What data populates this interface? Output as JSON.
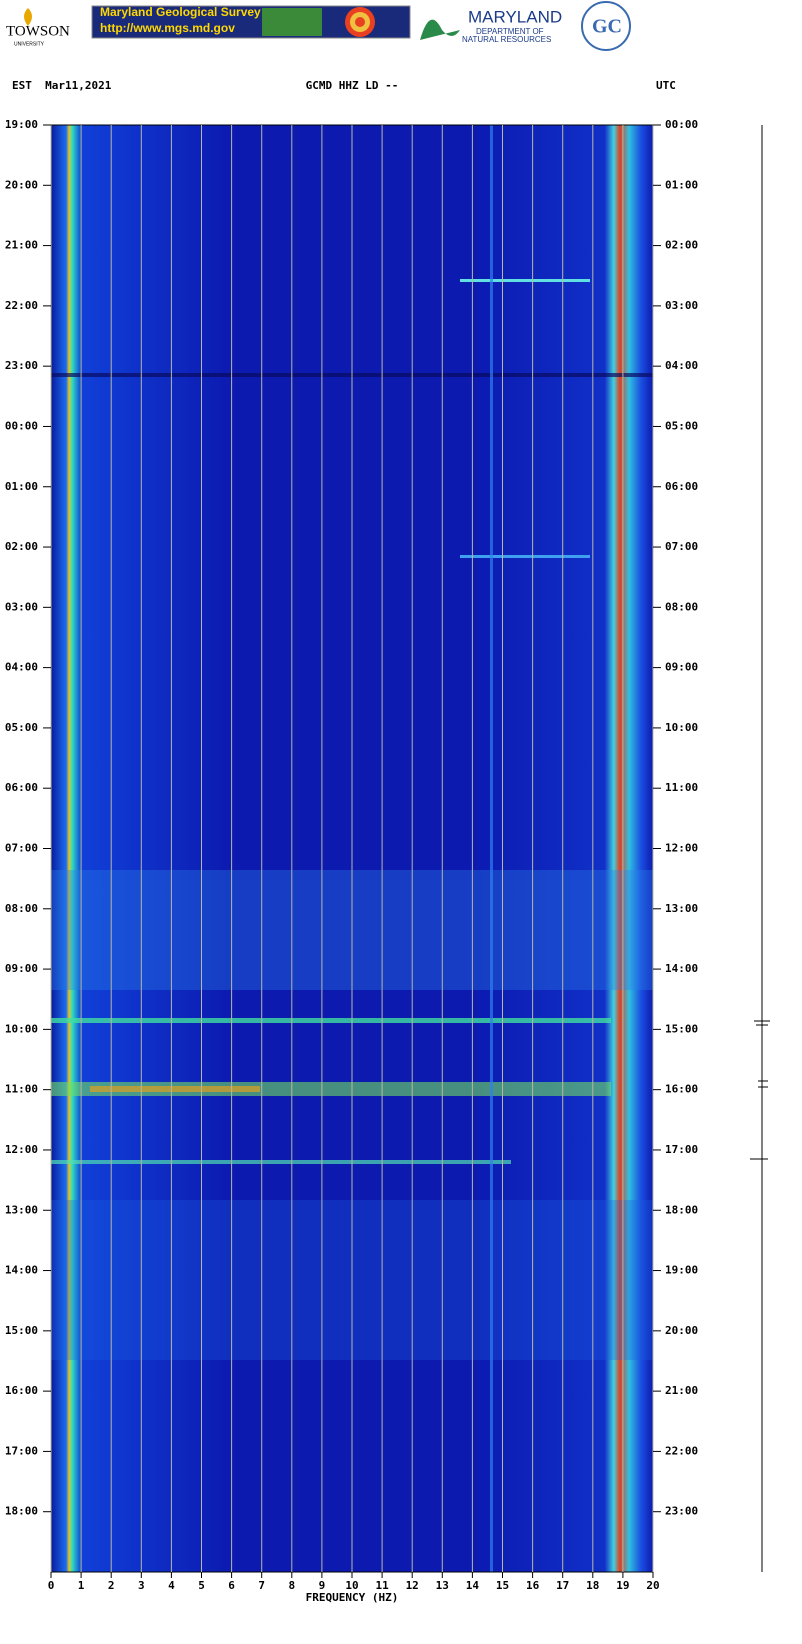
{
  "header": {
    "towson": "TOWSON",
    "towson_sub": "UNIVERSITY",
    "mgs_title": "Maryland Geological Survey",
    "mgs_url": "http://www.mgs.md.gov",
    "dnr_title": "MARYLAND",
    "dnr_sub1": "DEPARTMENT OF",
    "dnr_sub2": "NATURAL RESOURCES"
  },
  "chart_data": {
    "type": "spectrogram",
    "title": "GCMD HHZ LD --",
    "left_label": "EST  Mar11,2021",
    "right_label": "UTC",
    "x_label": "FREQUENCY (HZ)",
    "xlim": [
      0,
      20
    ],
    "xticks": [
      0,
      1,
      2,
      3,
      4,
      5,
      6,
      7,
      8,
      9,
      10,
      11,
      12,
      13,
      14,
      15,
      16,
      17,
      18,
      19,
      20
    ],
    "grid": true,
    "y_labels": [
      "19:00",
      "20:00",
      "21:00",
      "22:00",
      "23:00",
      "00:00",
      "01:00",
      "02:00",
      "03:00",
      "04:00",
      "05:00",
      "06:00",
      "07:00",
      "08:00",
      "09:00",
      "10:00",
      "11:00",
      "12:00",
      "13:00",
      "14:00",
      "15:00",
      "16:00",
      "17:00",
      "18:00"
    ],
    "y2_labels": [
      "00:00",
      "01:00",
      "02:00",
      "03:00",
      "04:00",
      "05:00",
      "06:00",
      "07:00",
      "08:00",
      "09:00",
      "10:00",
      "11:00",
      "12:00",
      "13:00",
      "14:00",
      "15:00",
      "16:00",
      "17:00",
      "18:00",
      "19:00",
      "20:00",
      "21:00",
      "22:00",
      "23:00"
    ]
  }
}
